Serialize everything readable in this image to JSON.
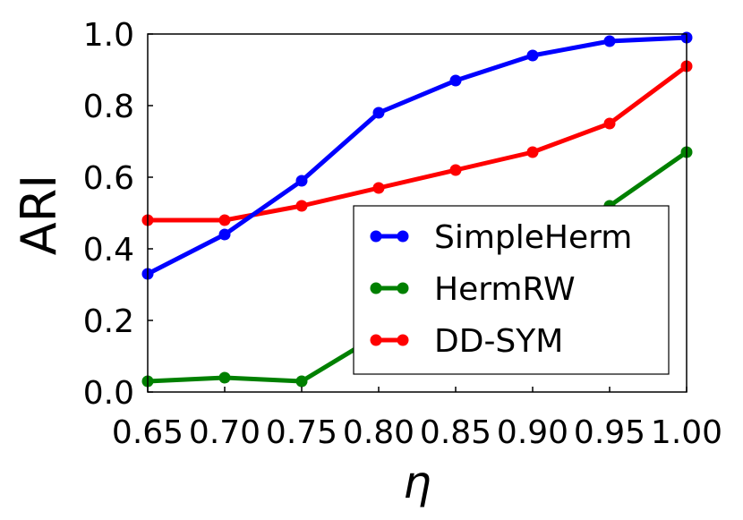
{
  "chart_data": {
    "type": "line",
    "xlabel": "η",
    "ylabel": "ARI",
    "xlim": [
      0.65,
      1.0
    ],
    "ylim": [
      0.0,
      1.0
    ],
    "x_ticks": [
      "0.65",
      "0.70",
      "0.75",
      "0.80",
      "0.85",
      "0.90",
      "0.95",
      "1.00"
    ],
    "y_ticks": [
      "0.0",
      "0.2",
      "0.4",
      "0.6",
      "0.8",
      "1.0"
    ],
    "legend_position": "lower-right",
    "x": [
      0.65,
      0.7,
      0.75,
      0.8,
      0.85,
      0.9,
      0.95,
      1.0
    ],
    "series": [
      {
        "name": "SimpleHerm",
        "color": "#0000ff",
        "values": [
          0.33,
          0.44,
          0.59,
          0.78,
          0.87,
          0.94,
          0.98,
          0.99
        ]
      },
      {
        "name": "HermRW",
        "color": "#008000",
        "values": [
          0.03,
          0.04,
          0.03,
          0.16,
          0.33,
          0.46,
          0.52,
          0.67
        ]
      },
      {
        "name": "DD-SYM",
        "color": "#ff0000",
        "values": [
          0.48,
          0.48,
          0.52,
          0.57,
          0.62,
          0.67,
          0.75,
          0.91
        ]
      }
    ]
  }
}
